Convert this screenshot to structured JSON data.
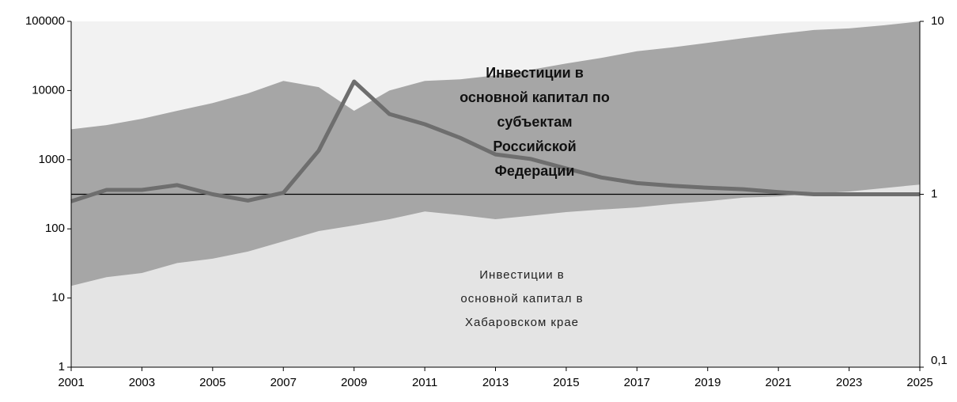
{
  "chart_data": {
    "type": "area-line",
    "x": [
      2001,
      2002,
      2003,
      2004,
      2005,
      2006,
      2007,
      2008,
      2009,
      2010,
      2011,
      2012,
      2013,
      2014,
      2015,
      2016,
      2017,
      2018,
      2019,
      2020,
      2021,
      2022,
      2023,
      2024,
      2025
    ],
    "xlim": [
      2001,
      2025
    ],
    "xticks": [
      2001,
      2003,
      2005,
      2007,
      2009,
      2011,
      2013,
      2015,
      2017,
      2019,
      2021,
      2023,
      2025
    ],
    "ylim": [
      1,
      100000
    ],
    "yticks": [
      1,
      10,
      100,
      1000,
      10000,
      100000
    ],
    "ylog": true,
    "y2lim": [
      0.1,
      10
    ],
    "y2ticks": [
      {
        "value": 0.1,
        "label": "0,1"
      },
      1,
      10
    ],
    "y2log": true,
    "background": "#f2f2f2",
    "series": [
      {
        "color": "#a6a6a6",
        "values": [
          2750,
          3160,
          3900,
          5100,
          6600,
          9100,
          13800,
          11200,
          5100,
          10000,
          13800,
          14500,
          16600,
          20000,
          24600,
          29700,
          37000,
          42000,
          49000,
          57000,
          66000,
          75000,
          79000,
          88000,
          100000
        ]
      },
      {
        "color": "#e4e4e4",
        "values": [
          15,
          20,
          23,
          32,
          37,
          47,
          66,
          93,
          112,
          138,
          178,
          158,
          138,
          155,
          175,
          190,
          204,
          229,
          251,
          282,
          295,
          324,
          347,
          389,
          437
        ]
      },
      {
        "color": "#6e6e6e",
        "axis": "y2",
        "values": [
          0.91,
          1.06,
          1.06,
          1.13,
          1.0,
          0.92,
          1.02,
          1.79,
          4.49,
          2.91,
          2.54,
          2.12,
          1.7,
          1.6,
          1.41,
          1.25,
          1.16,
          1.12,
          1.09,
          1.07,
          1.03,
          1.0,
          1.0,
          1.0,
          1.0
        ]
      }
    ],
    "annotations": [
      {
        "lines": [
          "Инвестиции в",
          "основной капитал по",
          "субъектам",
          "Российской",
          "Федерации"
        ]
      },
      {
        "lines": [
          "Инвестиции в",
          "основной капитал в",
          "Хабаровском крае"
        ]
      }
    ]
  }
}
